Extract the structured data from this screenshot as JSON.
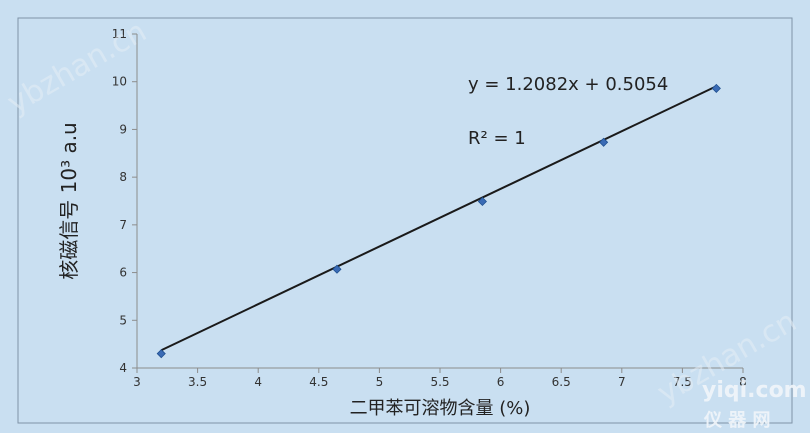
{
  "chart_data": {
    "type": "scatter",
    "title": "",
    "xlabel": "二甲苯可溶物含量 (%)",
    "ylabel": "核磁信号 10³ a.u",
    "xlim": [
      3,
      8
    ],
    "ylim": [
      4,
      11
    ],
    "x_ticks": [
      "3",
      "3.5",
      "4",
      "4.5",
      "5",
      "5.5",
      "6",
      "6.5",
      "7",
      "7.5",
      "8"
    ],
    "y_ticks": [
      "4",
      "5",
      "6",
      "7",
      "8",
      "9",
      "10",
      "11"
    ],
    "grid": false,
    "series": [
      {
        "x": [
          3.2,
          4.65,
          5.85,
          6.85,
          7.78
        ],
        "y": [
          4.3,
          6.07,
          7.49,
          8.73,
          9.86
        ],
        "color": "#3a6bb5"
      }
    ],
    "trendline": {
      "type": "linear",
      "slope": 1.2082,
      "intercept": 0.5054,
      "x_range": [
        3.2,
        7.78
      ],
      "color": "#1a1a1a"
    },
    "annotations": {
      "equation": "y = 1.2082x + 0.5054",
      "r_squared_label": "R² = 1"
    },
    "colors": {
      "background": "#c9dff1",
      "plot_area": "#c9dff1",
      "marker": "#3a6bb5",
      "line": "#1a1a1a"
    }
  },
  "watermarks": {
    "left": "ybzhan.cn",
    "right": "ybzhan.cn",
    "logo_domain": "yiqi.com",
    "logo_cn": "仪 器 网"
  }
}
